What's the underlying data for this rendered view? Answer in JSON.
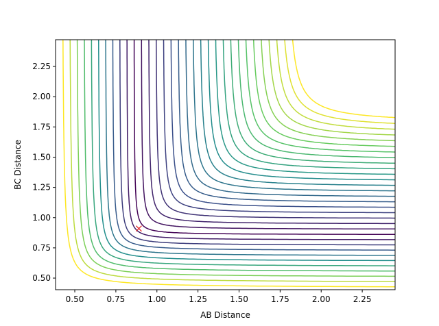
{
  "chart_data": {
    "type": "contour",
    "x_label": "AB Distance",
    "y_label": "BC Distance",
    "xlim": [
      0.383,
      2.45
    ],
    "ylim": [
      0.404,
      2.471
    ],
    "xticks": [
      {
        "value": 0.5,
        "label": "0.50"
      },
      {
        "value": 0.75,
        "label": "0.75"
      },
      {
        "value": 1.0,
        "label": "1.00"
      },
      {
        "value": 1.25,
        "label": "1.25"
      },
      {
        "value": 1.5,
        "label": "1.50"
      },
      {
        "value": 1.75,
        "label": "1.75"
      },
      {
        "value": 2.0,
        "label": "2.00"
      },
      {
        "value": 2.25,
        "label": "2.25"
      }
    ],
    "yticks": [
      {
        "value": 0.5,
        "label": "0.50"
      },
      {
        "value": 0.75,
        "label": "0.75"
      },
      {
        "value": 1.0,
        "label": "1.00"
      },
      {
        "value": 1.25,
        "label": "1.25"
      },
      {
        "value": 1.5,
        "label": "1.50"
      },
      {
        "value": 1.75,
        "label": "1.75"
      },
      {
        "value": 2.0,
        "label": "2.00"
      },
      {
        "value": 2.25,
        "label": "2.25"
      }
    ],
    "marker": {
      "x": 0.89,
      "y": 0.91,
      "color": "#e41a1c"
    }
  }
}
